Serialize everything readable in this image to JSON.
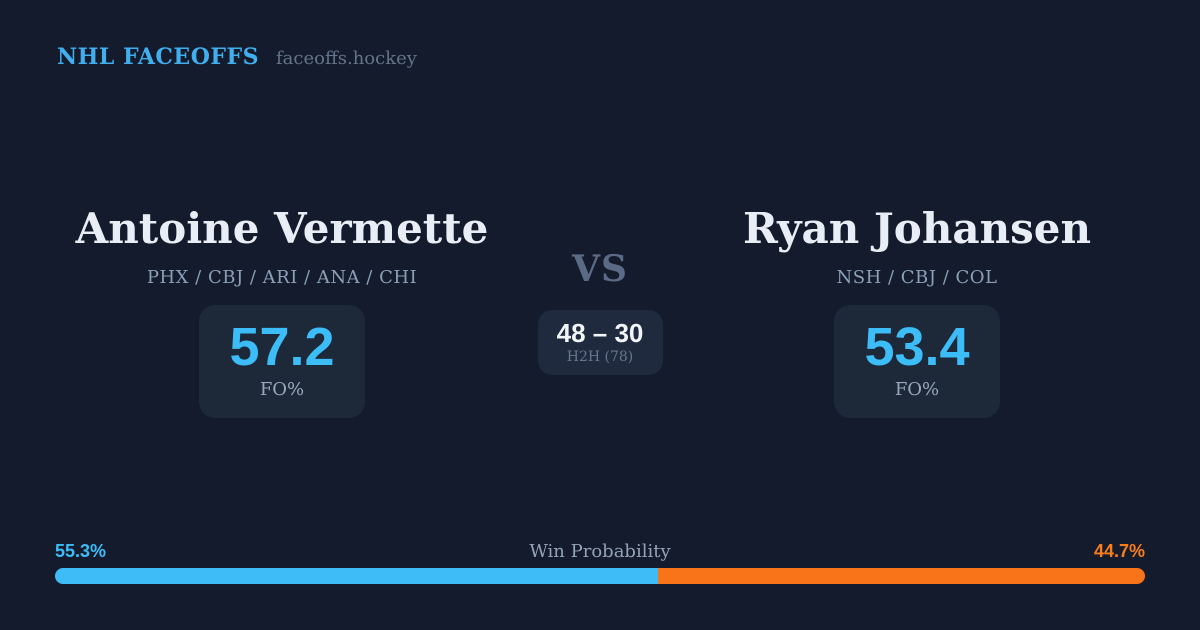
{
  "brand": {
    "title": "NHL FACEOFFS",
    "domain": "faceoffs.hockey"
  },
  "players": {
    "left": {
      "name": "Antoine Vermette",
      "teams": "PHX / CBJ / ARI / ANA / CHI",
      "fo_value": "57.2",
      "fo_label": "FO%"
    },
    "right": {
      "name": "Ryan Johansen",
      "teams": "NSH / CBJ / COL",
      "fo_value": "53.4",
      "fo_label": "FO%"
    }
  },
  "matchup": {
    "vs_label": "VS",
    "h2h_score": "48 – 30",
    "h2h_label": "H2H (78)"
  },
  "win_probability": {
    "label": "Win Probability",
    "left_pct": 55.3,
    "right_pct": 44.7,
    "left_text": "55.3%",
    "right_text": "44.7%"
  },
  "colors": {
    "background": "#131b2d",
    "card": "#1d2839",
    "accent_blue": "#3cbdf8",
    "accent_orange": "#f97418",
    "text_primary": "#e9eef6",
    "text_muted": "#8ba0b8",
    "text_dim": "#5c6b85"
  }
}
